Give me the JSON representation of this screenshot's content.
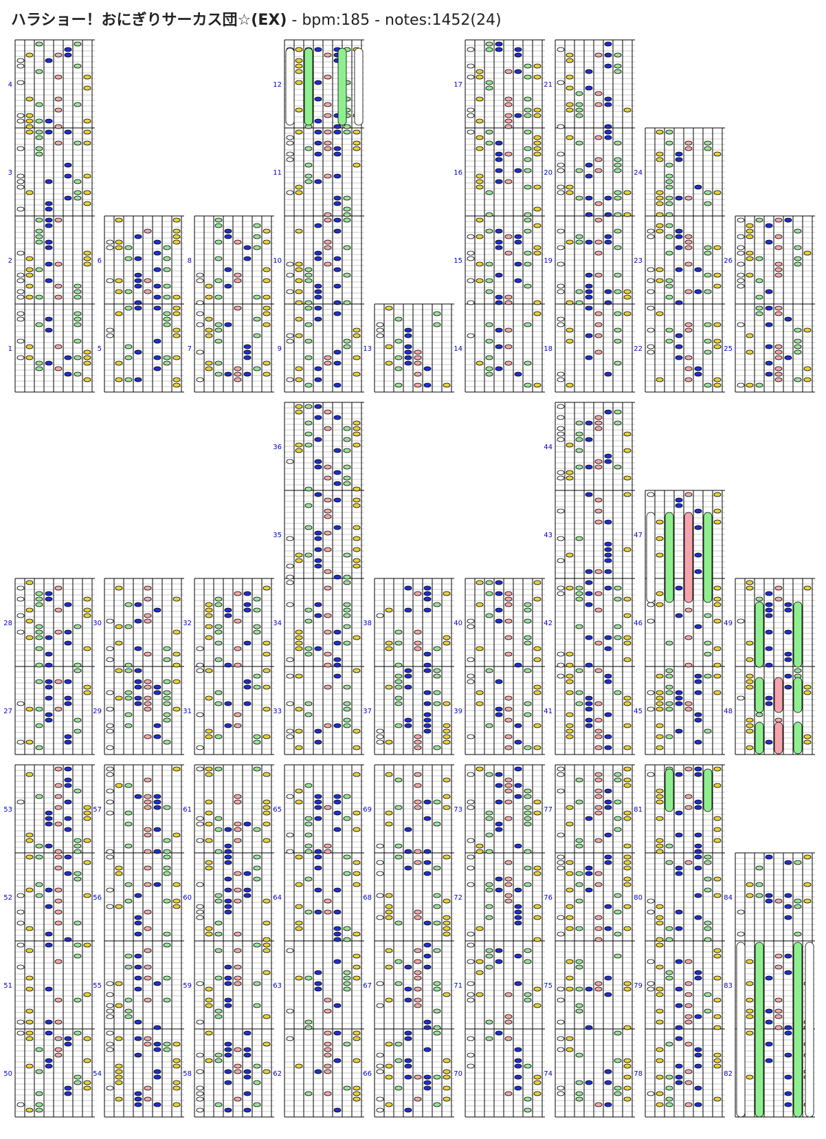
{
  "header": {
    "song_title": "ハラショー！おにぎりサーカス団☆(EX)",
    "meta": " - bpm:185 - notes:1452(24)"
  },
  "colors": {
    "lane_line": "#000000",
    "beat_line": "#c8c8c8",
    "measure_number": "#0000cc",
    "note_white": "#ffffff",
    "note_yellow": "#e8d23a",
    "note_green": "#9be39b",
    "note_blue": "#1f2fd0",
    "note_pink": "#f4a8a8",
    "long_green": "#8fef8f",
    "long_pink": "#f5a3ad"
  },
  "measures": {
    "row1": [
      [
        "1",
        "2",
        "3",
        "4"
      ],
      [
        "5",
        "6"
      ],
      [
        "7",
        "8"
      ],
      [
        "9",
        "10",
        "11",
        "12"
      ],
      [
        "13"
      ],
      [
        "14",
        "15",
        "16",
        "17"
      ],
      [
        "18",
        "19",
        "20",
        "21"
      ],
      [
        "22",
        "23",
        "24"
      ],
      [
        "25",
        "26"
      ]
    ],
    "row2": [
      [
        "27",
        "28"
      ],
      [
        "29",
        "30"
      ],
      [
        "31",
        "32"
      ],
      [
        "33",
        "34",
        "35",
        "36"
      ],
      [
        "37",
        "38"
      ],
      [
        "39",
        "40"
      ],
      [
        "41",
        "42",
        "43",
        "44"
      ],
      [
        "45",
        "46",
        "47"
      ],
      [
        "48",
        "49"
      ]
    ],
    "row3": [
      [
        "50",
        "51",
        "52",
        "53"
      ],
      [
        "54",
        "55",
        "56",
        "57"
      ],
      [
        "58",
        "59",
        "60",
        "61"
      ],
      [
        "62",
        "63",
        "64",
        "65"
      ],
      [
        "66",
        "67",
        "68",
        "69"
      ],
      [
        "70",
        "71",
        "72",
        "73"
      ],
      [
        "74",
        "75",
        "76",
        "77"
      ],
      [
        "78",
        "79",
        "80",
        "81"
      ],
      [
        "82",
        "83",
        "84"
      ]
    ]
  }
}
